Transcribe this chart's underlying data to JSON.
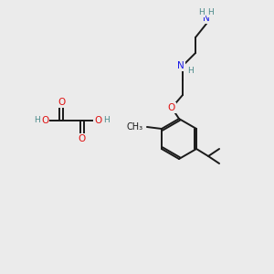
{
  "background_color": "#ebebeb",
  "bond_color": "#1a1a1a",
  "bond_width": 1.4,
  "atom_colors": {
    "C": "#1a1a1a",
    "H": "#4a8a8a",
    "N": "#1a1ae8",
    "O": "#e01010"
  },
  "font_size_atom": 7.5,
  "font_size_H": 6.5,
  "figsize": [
    3.0,
    3.0
  ],
  "dpi": 100
}
